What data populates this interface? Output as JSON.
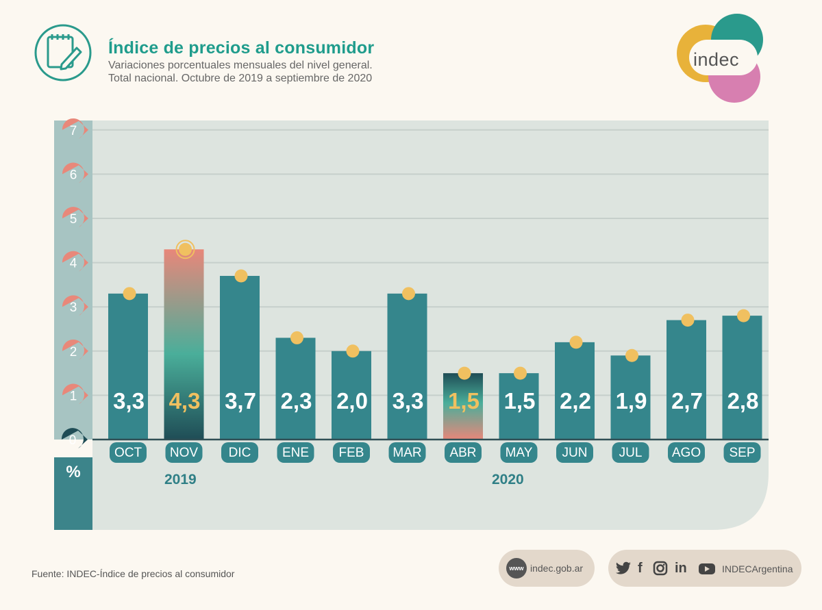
{
  "header": {
    "title": "Índice de precios al consumidor",
    "subtitle_line1": "Variaciones porcentuales mensuales del nivel general.",
    "subtitle_line2": "Total nacional. Octubre de 2019 a septiembre de 2020"
  },
  "logo": {
    "text": "indec"
  },
  "chart_data": {
    "type": "bar",
    "categories": [
      "OCT",
      "NOV",
      "DIC",
      "ENE",
      "FEB",
      "MAR",
      "ABR",
      "MAY",
      "JUN",
      "JUL",
      "AGO",
      "SEP"
    ],
    "values": [
      3.3,
      4.3,
      3.7,
      2.3,
      2.0,
      3.3,
      1.5,
      1.5,
      2.2,
      1.9,
      2.7,
      2.8
    ],
    "labels": [
      "3,3",
      "4,3",
      "3,7",
      "2,3",
      "2,0",
      "3,3",
      "1,5",
      "1,5",
      "2,2",
      "1,9",
      "2,7",
      "2,8"
    ],
    "highlight_max": "NOV",
    "highlight_min": "ABR",
    "yticks": [
      "0",
      "1",
      "2",
      "3",
      "4",
      "5",
      "6",
      "7"
    ],
    "ylim": [
      0,
      7
    ],
    "unit_label": "%",
    "year_labels": [
      "2019",
      "2020"
    ],
    "grid": true,
    "colors": {
      "bar": "#35868c",
      "marker": "#f0c060",
      "tick_circle": "#e8887a",
      "axis_band": "#3c848a",
      "plot_bg": "#dde4df",
      "highlight_text": "#f0c060"
    }
  },
  "footer": {
    "source": "Fuente: INDEC-Índice de precios al consumidor",
    "web_icon": "www",
    "web_label": "indec.gob.ar",
    "social_icons": [
      "twitter-icon",
      "facebook-icon",
      "instagram-icon",
      "linkedin-icon",
      "youtube-icon"
    ],
    "social_label": "INDECArgentina"
  }
}
